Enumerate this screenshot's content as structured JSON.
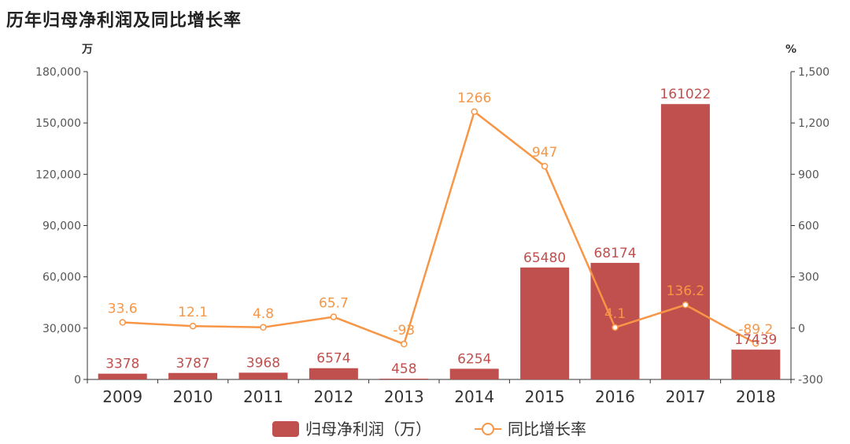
{
  "title": "历年归母净利润及同比增长率",
  "chart_data": {
    "type": "bar",
    "categories": [
      "2009",
      "2010",
      "2011",
      "2012",
      "2013",
      "2014",
      "2015",
      "2016",
      "2017",
      "2018"
    ],
    "series": [
      {
        "name": "归母净利润（万）",
        "type": "bar",
        "axis": "left",
        "color": "#c0504d",
        "values": [
          3378,
          3787,
          3968,
          6574,
          458,
          6254,
          65480,
          68174,
          161022,
          17439
        ],
        "labels": [
          "3378",
          "3787",
          "3968",
          "6574",
          "458",
          "6254",
          "65480",
          "68174",
          "161022",
          "17439"
        ]
      },
      {
        "name": "同比增长率",
        "type": "line",
        "axis": "right",
        "color": "#f79646",
        "values": [
          33.6,
          12.1,
          4.8,
          65.7,
          -93,
          1266,
          947,
          4.1,
          136.2,
          -89.2
        ],
        "labels": [
          "33.6",
          "12.1",
          "4.8",
          "65.7",
          "-93",
          "1266",
          "947",
          "4.1",
          "136.2",
          "-89.2"
        ]
      }
    ],
    "y_left": {
      "unit": "万",
      "ylim": [
        0,
        180000
      ],
      "ticks": [
        0,
        30000,
        60000,
        90000,
        120000,
        150000,
        180000
      ],
      "tick_labels": [
        "0",
        "30,000",
        "60,000",
        "90,000",
        "120,000",
        "150,000",
        "180,000"
      ]
    },
    "y_right": {
      "unit": "%",
      "ylim": [
        -300,
        1500
      ],
      "ticks": [
        -300,
        0,
        300,
        600,
        900,
        1200,
        1500
      ],
      "tick_labels": [
        "-300",
        "0",
        "300",
        "600",
        "900",
        "1,200",
        "1,500"
      ]
    },
    "grid": false,
    "legend": "bottom"
  }
}
